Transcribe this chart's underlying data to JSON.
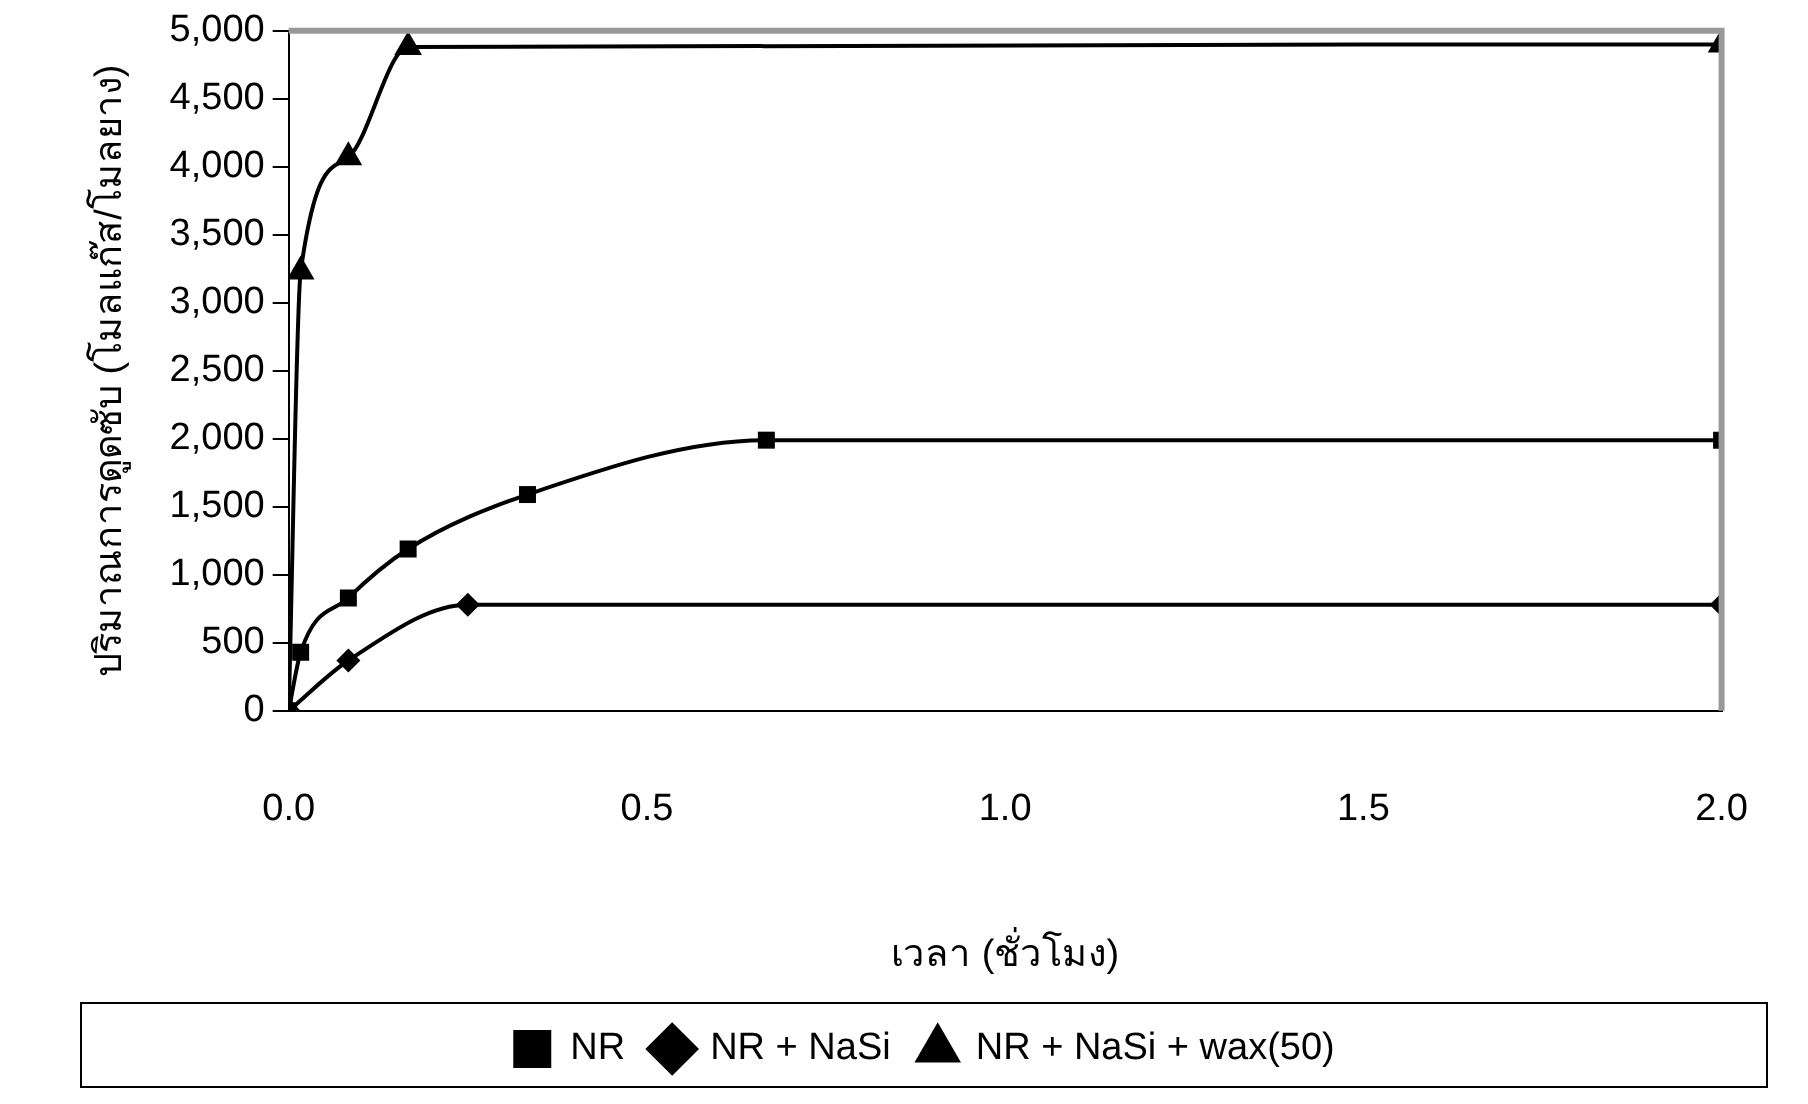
{
  "chart_data": {
    "type": "line",
    "xlabel": "เวลา (ชั่วโมง)",
    "ylabel": "ปริมาณการดูดซับ (โมลแก๊ส/โมลยาง)",
    "xlim": [
      0,
      2
    ],
    "xticks": [
      {
        "value": 0,
        "label": "0.0"
      },
      {
        "value": 0.5,
        "label": "0.5"
      },
      {
        "value": 1,
        "label": "1.0"
      },
      {
        "value": 1.5,
        "label": "1.5"
      },
      {
        "value": 2,
        "label": "2.0"
      }
    ],
    "ylim": [
      0,
      5000
    ],
    "yticks": [
      {
        "value": 0,
        "label": "0"
      },
      {
        "value": 500,
        "label": "500"
      },
      {
        "value": 1000,
        "label": "1,000"
      },
      {
        "value": 1500,
        "label": "1,500"
      },
      {
        "value": 2000,
        "label": "2,000"
      },
      {
        "value": 2500,
        "label": "2,500"
      },
      {
        "value": 3000,
        "label": "3,000"
      },
      {
        "value": 3500,
        "label": "3,500"
      },
      {
        "value": 4000,
        "label": "4,000"
      },
      {
        "value": 4500,
        "label": "4,500"
      },
      {
        "value": 5000,
        "label": "5,000"
      }
    ],
    "grid": false,
    "legend": "bottom",
    "line_style": "solid",
    "series": [
      {
        "name": "NR",
        "color": "#000000",
        "marker": "square",
        "x": [
          0,
          0.0167,
          0.0833,
          0.1667,
          0.3333,
          0.6667,
          2
        ],
        "values": [
          0,
          430,
          830,
          1190,
          1590,
          1990,
          1990
        ]
      },
      {
        "name": "NR + NaSi",
        "color": "#000000",
        "marker": "diamond",
        "x": [
          0,
          0.0833,
          0.25,
          2
        ],
        "values": [
          0,
          370,
          780,
          780
        ]
      },
      {
        "name": "NR + NaSi + wax(50)",
        "color": "#000000",
        "marker": "triangle",
        "x": [
          0,
          0.0167,
          0.0833,
          0.1667,
          2
        ],
        "values": [
          0,
          3230,
          4070,
          4880,
          4900
        ]
      }
    ]
  }
}
